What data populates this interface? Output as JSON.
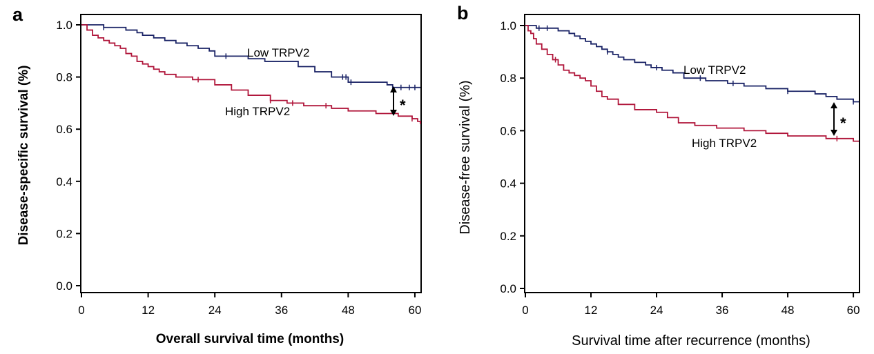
{
  "chart_data": [
    {
      "panel": "a",
      "type": "line",
      "subtype": "kaplan-meier",
      "title": "",
      "xlabel": "Overall survival time (months)",
      "ylabel": "Disease-specific survival (%)",
      "xlim": [
        0,
        61
      ],
      "ylim": [
        0,
        1
      ],
      "xticks": [
        "0",
        "12",
        "24",
        "36",
        "48",
        "60"
      ],
      "yticks": [
        "0.0",
        "0.2",
        "0.4",
        "0.6",
        "0.8",
        "1.0"
      ],
      "significance": "*",
      "colors": {
        "low": "#1a2366",
        "high": "#b0153a"
      },
      "series": [
        {
          "name": "Low TRPV2",
          "label": "Low TRPV2",
          "x": [
            0,
            4,
            8,
            10,
            11,
            13,
            15,
            17,
            19,
            21,
            23,
            24,
            27,
            30,
            33,
            39,
            40,
            42,
            45,
            48,
            55,
            56,
            61
          ],
          "y": [
            1.0,
            0.99,
            0.98,
            0.97,
            0.96,
            0.95,
            0.94,
            0.93,
            0.92,
            0.91,
            0.9,
            0.88,
            0.88,
            0.87,
            0.86,
            0.84,
            0.84,
            0.82,
            0.8,
            0.78,
            0.77,
            0.76,
            0.76
          ],
          "censor_x": [
            4,
            26,
            47,
            47.6,
            48.5,
            56,
            57.5,
            59,
            60
          ]
        },
        {
          "name": "High TRPV2",
          "label": "High TRPV2",
          "x": [
            0,
            1,
            2,
            3,
            4,
            5,
            6,
            7,
            8,
            9,
            10,
            11,
            12,
            13,
            14,
            15,
            17,
            20,
            24,
            27,
            30,
            34,
            37,
            40,
            45,
            48,
            53,
            57,
            59.5,
            60.5,
            61
          ],
          "y": [
            1.0,
            0.98,
            0.96,
            0.95,
            0.94,
            0.93,
            0.92,
            0.91,
            0.89,
            0.88,
            0.86,
            0.85,
            0.84,
            0.83,
            0.82,
            0.81,
            0.8,
            0.79,
            0.77,
            0.75,
            0.73,
            0.71,
            0.7,
            0.69,
            0.68,
            0.67,
            0.66,
            0.65,
            0.64,
            0.63,
            0.62
          ],
          "censor_x": [
            21,
            34,
            38,
            44,
            59.5
          ]
        }
      ]
    },
    {
      "panel": "b",
      "type": "line",
      "subtype": "kaplan-meier",
      "title": "",
      "xlabel": "Survival time after recurrence (months)",
      "ylabel": "Disease-free survival (%)",
      "xlim": [
        0,
        61
      ],
      "ylim": [
        0,
        1
      ],
      "xticks": [
        "0",
        "12",
        "24",
        "36",
        "48",
        "60"
      ],
      "yticks": [
        "0.0",
        "0.2",
        "0.4",
        "0.6",
        "0.8",
        "1.0"
      ],
      "significance": "*",
      "colors": {
        "low": "#1a2366",
        "high": "#b0153a"
      },
      "series": [
        {
          "name": "Low TRPV2",
          "label": "Low TRPV2",
          "x": [
            0,
            2,
            6,
            8,
            9,
            10,
            11,
            12,
            13,
            14,
            15,
            16,
            17,
            18,
            20,
            22,
            23,
            25,
            27,
            29,
            33,
            37,
            40,
            44,
            48,
            53,
            55,
            57,
            60,
            61
          ],
          "y": [
            1.0,
            0.99,
            0.98,
            0.97,
            0.96,
            0.95,
            0.94,
            0.93,
            0.92,
            0.91,
            0.9,
            0.89,
            0.88,
            0.87,
            0.86,
            0.85,
            0.84,
            0.83,
            0.82,
            0.8,
            0.79,
            0.78,
            0.77,
            0.76,
            0.75,
            0.74,
            0.73,
            0.72,
            0.71,
            0.71
          ],
          "censor_x": [
            2.5,
            4,
            15,
            24,
            32,
            38,
            48,
            60
          ]
        },
        {
          "name": "High TRPV2",
          "label": "High TRPV2",
          "x": [
            0,
            0.5,
            1,
            1.5,
            2,
            3,
            4,
            5,
            6,
            7,
            8,
            9,
            10,
            11,
            12,
            13,
            14,
            15,
            17,
            20,
            24,
            26,
            28,
            31,
            35,
            40,
            44,
            48,
            55,
            57,
            60,
            61
          ],
          "y": [
            1.0,
            0.98,
            0.97,
            0.95,
            0.93,
            0.91,
            0.89,
            0.87,
            0.85,
            0.83,
            0.82,
            0.81,
            0.8,
            0.79,
            0.77,
            0.75,
            0.73,
            0.72,
            0.7,
            0.68,
            0.67,
            0.65,
            0.63,
            0.62,
            0.61,
            0.6,
            0.59,
            0.58,
            0.57,
            0.57,
            0.56,
            0.56
          ],
          "censor_x": [
            5.5,
            57
          ]
        }
      ]
    }
  ]
}
